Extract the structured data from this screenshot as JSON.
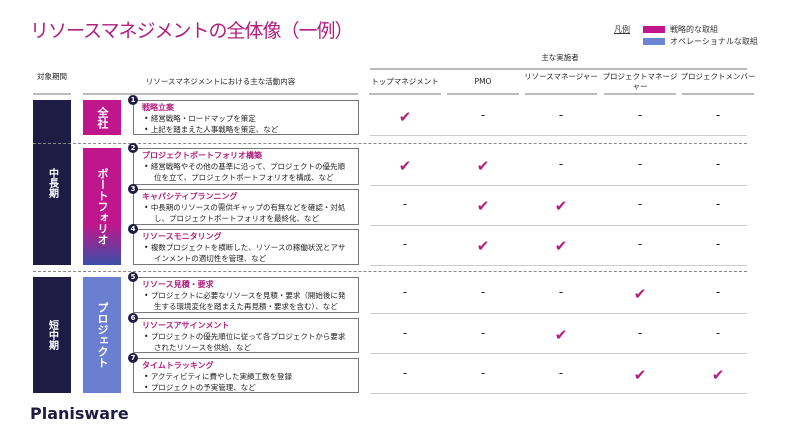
{
  "title": "リソースマネジメントの全体像（一例）",
  "legend": {
    "label": "凡例",
    "items": [
      {
        "label": "戦略的な取組",
        "color": "#c0168c"
      },
      {
        "label": "オペレーショナルな取組",
        "color": "#6a85d6"
      }
    ]
  },
  "header": {
    "target_period": "対象期間",
    "activities": "リソースマネジメントにおける主な活動内容",
    "performers": "主な実施者",
    "roles": [
      "トップマネジメント",
      "PMO",
      "リソースマネージャー",
      "プロジェクトマネージャー",
      "プロジェクトメンバー"
    ]
  },
  "periods": [
    "中長期",
    "短中期"
  ],
  "categories": [
    "全社",
    "ポートフォリオ",
    "プロジェクト"
  ],
  "activities": [
    {
      "num": "1",
      "title": "戦略立案",
      "bullets": [
        "経営戦略・ロードマップを策定",
        "上記を踏まえた人事戦略を策定、など"
      ],
      "marks": [
        "✔",
        "-",
        "-",
        "-",
        "-"
      ]
    },
    {
      "num": "2",
      "title": "プロジェクトポートフォリオ構築",
      "bullets": [
        "経営戦略やその他の基準に沿って、プロジェクトの優先順位を立て、プロジェクトポートフォリオを構成、など"
      ],
      "marks": [
        "✔",
        "✔",
        "-",
        "-",
        "-"
      ]
    },
    {
      "num": "3",
      "title": "キャパシティプランニング",
      "bullets": [
        "中長期のリソースの需供ギャップの有無などを確認・対処し、プロジェクトポートフォリオを最終化、など"
      ],
      "marks": [
        "-",
        "✔",
        "✔",
        "-",
        "-"
      ]
    },
    {
      "num": "4",
      "title": "リソースモニタリング",
      "bullets": [
        "複数プロジェクトを横断した、リソースの稼働状況とアサインメントの適切性を管理、など"
      ],
      "marks": [
        "-",
        "✔",
        "✔",
        "-",
        "-"
      ]
    },
    {
      "num": "5",
      "title": "リソース見積・要求",
      "bullets": [
        "プロジェクトに必要なリソースを見積・要求（開始後に発生する環境変化を踏まえた再見積・要求を含む）、など"
      ],
      "marks": [
        "-",
        "-",
        "-",
        "✔",
        "-"
      ]
    },
    {
      "num": "6",
      "title": "リソースアサインメント",
      "bullets": [
        "プロジェクトの優先順位に従って各プロジェクトから要求されたリソースを供給、など"
      ],
      "marks": [
        "-",
        "-",
        "✔",
        "-",
        "-"
      ]
    },
    {
      "num": "7",
      "title": "タイムトラッキング",
      "bullets": [
        "アクティビティに費やした実績工数を登録",
        "プロジェクトの予実管理、など"
      ],
      "marks": [
        "-",
        "-",
        "-",
        "✔",
        "✔"
      ]
    }
  ],
  "logo": "Planisware"
}
